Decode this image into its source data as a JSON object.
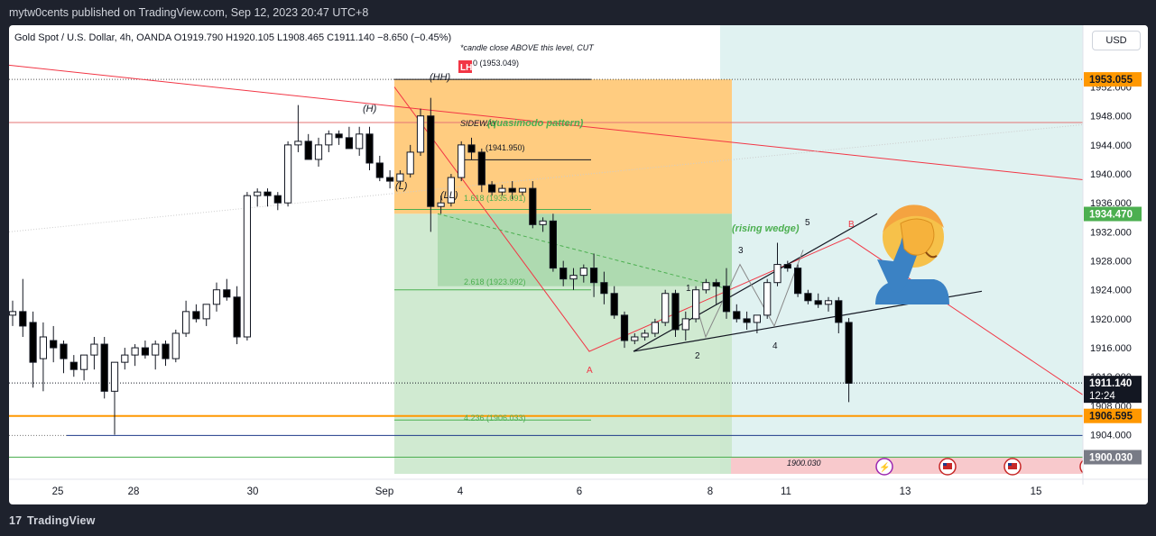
{
  "header": {
    "published": "mytw0cents published on TradingView.com, Sep 12, 2023 20:47 UTC+8"
  },
  "footer": {
    "brand": "TradingView"
  },
  "currency_button": "USD",
  "chart_data": {
    "type": "candlestick",
    "symbol_line": "Gold Spot / U.S. Dollar, 4h, OANDA  O1919.790  H1920.105  L1908.465  C1911.140  −8.650 (−0.45%)",
    "ylim": [
      1898.6,
      1955.3
    ],
    "y_ticks": [
      "1952.000",
      "1948.000",
      "1944.000",
      "1940.000",
      "1936.000",
      "1932.000",
      "1928.000",
      "1924.000",
      "1920.000",
      "1916.000",
      "1912.000",
      "1908.000",
      "1904.000"
    ],
    "x_ticks": [
      "25",
      "28",
      "30",
      "Sep",
      "4",
      "6",
      "8",
      "11",
      "13",
      "15"
    ],
    "price_badges": {
      "resistance": "1953.055",
      "wedge_base": "1934.470",
      "last_price": "1911.140",
      "countdown": "12:24",
      "support": "1906.595",
      "floor": "1900.030"
    },
    "candles": [
      [
        1920.5,
        1922.5,
        1919.0,
        1921.0
      ],
      [
        1921.0,
        1925.5,
        1917.5,
        1919.0
      ],
      [
        1919.5,
        1921.0,
        1910.5,
        1914.0
      ],
      [
        1914.5,
        1919.5,
        1910.0,
        1917.5
      ],
      [
        1917.0,
        1919.0,
        1914.0,
        1916.0
      ],
      [
        1916.5,
        1917.0,
        1912.5,
        1914.5
      ],
      [
        1914.0,
        1915.0,
        1912.0,
        1913.0
      ],
      [
        1913.0,
        1915.0,
        1911.5,
        1915.0
      ],
      [
        1915.0,
        1917.5,
        1913.0,
        1916.5
      ],
      [
        1916.5,
        1917.5,
        1909.0,
        1910.0
      ],
      [
        1910.0,
        1914.0,
        1904.0,
        1914.0
      ],
      [
        1914.0,
        1916.0,
        1913.0,
        1915.0
      ],
      [
        1915.0,
        1916.5,
        1913.5,
        1916.0
      ],
      [
        1916.0,
        1917.0,
        1914.5,
        1915.0
      ],
      [
        1915.0,
        1917.0,
        1913.0,
        1916.5
      ],
      [
        1916.5,
        1917.0,
        1913.5,
        1914.5
      ],
      [
        1914.5,
        1918.5,
        1914.0,
        1918.0
      ],
      [
        1918.0,
        1922.5,
        1917.5,
        1921.0
      ],
      [
        1921.0,
        1922.0,
        1919.5,
        1920.0
      ],
      [
        1920.0,
        1922.0,
        1919.0,
        1922.0
      ],
      [
        1922.0,
        1925.0,
        1921.0,
        1924.0
      ],
      [
        1924.0,
        1925.5,
        1922.5,
        1923.0
      ],
      [
        1923.0,
        1924.5,
        1916.5,
        1917.5
      ],
      [
        1917.5,
        1937.5,
        1917.0,
        1937.0
      ],
      [
        1937.0,
        1938.0,
        1935.5,
        1937.5
      ],
      [
        1937.5,
        1938.0,
        1935.5,
        1937.0
      ],
      [
        1937.0,
        1937.5,
        1935.0,
        1936.0
      ],
      [
        1936.0,
        1944.5,
        1935.5,
        1944.0
      ],
      [
        1944.0,
        1949.5,
        1943.0,
        1944.5
      ],
      [
        1944.5,
        1945.5,
        1942.0,
        1942.0
      ],
      [
        1942.0,
        1945.0,
        1941.0,
        1944.0
      ],
      [
        1944.0,
        1946.0,
        1943.0,
        1945.5
      ],
      [
        1945.5,
        1946.0,
        1944.0,
        1945.0
      ],
      [
        1945.0,
        1946.5,
        1944.0,
        1943.5
      ],
      [
        1943.5,
        1946.5,
        1942.5,
        1945.5
      ],
      [
        1945.5,
        1946.5,
        1940.5,
        1941.5
      ],
      [
        1941.5,
        1942.5,
        1939.0,
        1939.5
      ],
      [
        1939.5,
        1940.5,
        1938.0,
        1939.0
      ],
      [
        1939.0,
        1940.5,
        1938.5,
        1940.0
      ],
      [
        1940.0,
        1944.0,
        1939.5,
        1943.0
      ],
      [
        1943.0,
        1949.0,
        1942.5,
        1948.0
      ],
      [
        1948.0,
        1950.5,
        1932.0,
        1935.5
      ],
      [
        1935.5,
        1937.0,
        1934.5,
        1936.0
      ],
      [
        1936.0,
        1940.0,
        1935.5,
        1939.5
      ],
      [
        1939.5,
        1944.5,
        1939.0,
        1944.0
      ],
      [
        1944.0,
        1945.0,
        1942.0,
        1943.0
      ],
      [
        1943.0,
        1943.5,
        1937.5,
        1938.5
      ],
      [
        1938.5,
        1939.0,
        1937.0,
        1937.5
      ],
      [
        1937.5,
        1938.5,
        1937.0,
        1938.0
      ],
      [
        1938.0,
        1939.0,
        1936.5,
        1937.5
      ],
      [
        1937.5,
        1938.0,
        1937.0,
        1938.0
      ],
      [
        1938.0,
        1939.0,
        1932.5,
        1933.0
      ],
      [
        1933.0,
        1934.0,
        1932.0,
        1933.5
      ],
      [
        1933.5,
        1934.5,
        1926.5,
        1927.0
      ],
      [
        1927.0,
        1928.0,
        1924.5,
        1925.5
      ],
      [
        1925.5,
        1927.0,
        1924.0,
        1926.0
      ],
      [
        1926.0,
        1927.5,
        1925.0,
        1927.0
      ],
      [
        1927.0,
        1929.0,
        1923.0,
        1925.0
      ],
      [
        1925.0,
        1926.5,
        1922.0,
        1923.5
      ],
      [
        1923.5,
        1924.5,
        1920.0,
        1920.5
      ],
      [
        1920.5,
        1921.0,
        1916.0,
        1917.0
      ],
      [
        1917.0,
        1918.0,
        1916.5,
        1917.5
      ],
      [
        1917.5,
        1918.5,
        1917.0,
        1918.0
      ],
      [
        1918.0,
        1920.0,
        1917.5,
        1919.5
      ],
      [
        1919.5,
        1924.0,
        1919.0,
        1923.5
      ],
      [
        1923.5,
        1924.0,
        1917.5,
        1918.5
      ],
      [
        1918.5,
        1921.0,
        1917.0,
        1920.0
      ],
      [
        1920.0,
        1924.5,
        1919.5,
        1924.0
      ],
      [
        1924.0,
        1925.5,
        1923.5,
        1925.0
      ],
      [
        1925.0,
        1925.5,
        1922.0,
        1924.5
      ],
      [
        1924.5,
        1927.0,
        1920.0,
        1921.0
      ],
      [
        1921.0,
        1922.0,
        1919.5,
        1920.0
      ],
      [
        1920.0,
        1921.0,
        1918.5,
        1919.5
      ],
      [
        1919.5,
        1920.5,
        1918.0,
        1920.5
      ],
      [
        1920.5,
        1925.5,
        1920.0,
        1925.0
      ],
      [
        1925.0,
        1930.5,
        1924.5,
        1927.5
      ],
      [
        1927.5,
        1928.0,
        1926.5,
        1927.0
      ],
      [
        1927.0,
        1927.5,
        1923.0,
        1923.5
      ],
      [
        1923.5,
        1924.0,
        1922.0,
        1922.5
      ],
      [
        1922.5,
        1923.5,
        1921.5,
        1922.0
      ],
      [
        1922.0,
        1923.0,
        1921.0,
        1922.5
      ],
      [
        1922.5,
        1923.0,
        1918.0,
        1919.5
      ],
      [
        1919.5,
        1920.1,
        1908.5,
        1911.1
      ]
    ],
    "annotations": {
      "note": "*candle close ABOVE this level, CUT",
      "fib_0": "0 (1953.049)",
      "fib_mid": "(1941.950)",
      "fib_1618": "1.618 (1935.091)",
      "fib_2618": "2.618 (1923.992)",
      "fib_4236": "4.236 (1906.033)",
      "level_1900": "1900.030",
      "lh_badge": "LH",
      "hh": "(HH)",
      "h": "(H)",
      "l": "(L)",
      "ll": "(LL)",
      "sideway": "SIDEWAY",
      "qm": "(quasimodo pattern)",
      "rising_wedge": "(rising wedge)",
      "wave_labels": [
        "1",
        "2",
        "3",
        "4",
        "5"
      ],
      "point_a": "A",
      "point_b": "B"
    },
    "colors": {
      "candle_up": "#ffffff",
      "candle_down": "#000000",
      "red_line": "#f23645",
      "green_label": "#4caf50",
      "orange_level": "#ff9800",
      "zone_orange": "#ffcc80",
      "zone_green": "#c8e6c9",
      "zone_teal": "#e0f2f1"
    }
  }
}
